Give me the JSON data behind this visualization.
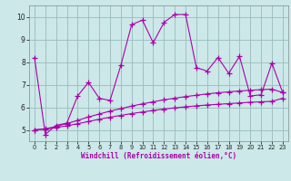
{
  "xlabel": "Windchill (Refroidissement éolien,°C)",
  "bg_color": "#cce8e8",
  "line_color": "#aa00aa",
  "grid_color": "#99bbbb",
  "x_data": [
    0,
    1,
    2,
    3,
    4,
    5,
    6,
    7,
    8,
    9,
    10,
    11,
    12,
    13,
    14,
    15,
    16,
    17,
    18,
    19,
    20,
    21,
    22,
    23
  ],
  "y_jagged": [
    8.2,
    4.8,
    5.2,
    5.3,
    6.5,
    7.1,
    6.4,
    6.3,
    7.85,
    9.65,
    9.85,
    8.85,
    9.75,
    10.1,
    10.1,
    7.75,
    7.6,
    8.2,
    7.5,
    8.25,
    6.5,
    6.55,
    7.95,
    6.65
  ],
  "y_curve1": [
    5.0,
    5.05,
    5.15,
    5.28,
    5.42,
    5.57,
    5.7,
    5.83,
    5.94,
    6.05,
    6.15,
    6.24,
    6.33,
    6.4,
    6.47,
    6.53,
    6.59,
    6.64,
    6.68,
    6.72,
    6.75,
    6.78,
    6.8,
    6.65
  ],
  "y_curve2": [
    5.0,
    5.03,
    5.1,
    5.18,
    5.27,
    5.37,
    5.47,
    5.56,
    5.64,
    5.72,
    5.79,
    5.86,
    5.92,
    5.97,
    6.02,
    6.06,
    6.1,
    6.13,
    6.16,
    6.19,
    6.22,
    6.24,
    6.26,
    6.4
  ],
  "ylim": [
    4.5,
    10.5
  ],
  "xlim": [
    -0.5,
    23.5
  ],
  "yticks": [
    5,
    6,
    7,
    8,
    9,
    10
  ],
  "xticks": [
    0,
    1,
    2,
    3,
    4,
    5,
    6,
    7,
    8,
    9,
    10,
    11,
    12,
    13,
    14,
    15,
    16,
    17,
    18,
    19,
    20,
    21,
    22,
    23
  ]
}
